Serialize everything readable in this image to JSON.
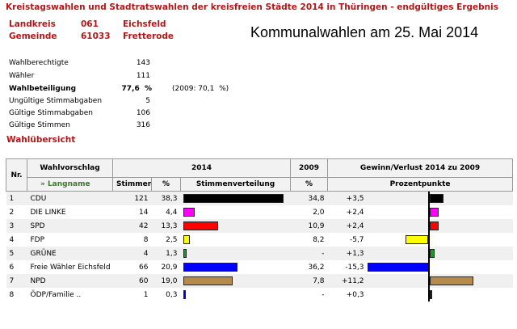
{
  "header": {
    "title": "Kreistagswahlen und Stadtratswahlen der kreisfreien Städte 2014 in Thüringen - endgültiges Ergebnis",
    "landkreis_label": "Landkreis",
    "landkreis_code": "061",
    "landkreis_name": "Eichsfeld",
    "gemeinde_label": "Gemeinde",
    "gemeinde_code": "61033",
    "gemeinde_name": "Fretterode",
    "overlay_text": "Kommunalwahlen am 25. Mai 2014"
  },
  "stats": [
    {
      "label": "Wahlberechtigte",
      "value": "143",
      "bold": false
    },
    {
      "label": "Wähler",
      "value": "111",
      "bold": false
    },
    {
      "label": "Wahlbeteiligung",
      "value": "77,6  %",
      "note": "(2009: 70,1  %)",
      "bold": true
    },
    {
      "label": "Ungültige Stimmabgaben",
      "value": "5",
      "bold": false
    },
    {
      "label": "Gültige Stimmabgaben",
      "value": "106",
      "bold": false
    },
    {
      "label": "Gültige Stimmen",
      "value": "316",
      "bold": false
    }
  ],
  "overview_title": "Wahlübersicht",
  "table": {
    "h_nr": "Nr.",
    "h_vorschlag": "Wahlvorschlag",
    "h_langname": "» Langname",
    "h_2014": "2014",
    "h_2009": "2009",
    "h_gewinn": "Gewinn/Verlust 2014 zu 2009",
    "h_stimmen": "Stimmen",
    "h_pct": "%",
    "h_verteilung": "Stimmenverteilung",
    "h_pct2009": "%",
    "h_prozentpunkte": "Prozentpunkte",
    "rows": [
      {
        "nr": "1",
        "name": "CDU",
        "stimmen": "121",
        "pct": "38,3",
        "pct2009": "34,8",
        "diff": "+3,5",
        "color": "#000000",
        "share": 38.3,
        "change": 3.5
      },
      {
        "nr": "2",
        "name": "DIE LINKE",
        "stimmen": "14",
        "pct": "4,4",
        "pct2009": "2,0",
        "diff": "+2,4",
        "color": "#ff00ff",
        "share": 4.4,
        "change": 2.4
      },
      {
        "nr": "3",
        "name": "SPD",
        "stimmen": "42",
        "pct": "13,3",
        "pct2009": "10,9",
        "diff": "+2,4",
        "color": "#ff0000",
        "share": 13.3,
        "change": 2.4
      },
      {
        "nr": "4",
        "name": "FDP",
        "stimmen": "8",
        "pct": "2,5",
        "pct2009": "8,2",
        "diff": "-5,7",
        "color": "#ffff00",
        "share": 2.5,
        "change": -5.7
      },
      {
        "nr": "5",
        "name": "GRÜNE",
        "stimmen": "4",
        "pct": "1,3",
        "pct2009": "-",
        "diff": "+1,3",
        "color": "#1e9a2a",
        "share": 1.3,
        "change": 1.3
      },
      {
        "nr": "6",
        "name": "Freie Wähler Eichsfeld",
        "stimmen": "66",
        "pct": "20,9",
        "pct2009": "36,2",
        "diff": "-15,3",
        "color": "#0000ff",
        "share": 20.9,
        "change": -15.3
      },
      {
        "nr": "7",
        "name": "NPD",
        "stimmen": "60",
        "pct": "19,0",
        "pct2009": "7,8",
        "diff": "+11,2",
        "color": "#b58a4a",
        "share": 19.0,
        "change": 11.2
      },
      {
        "nr": "8",
        "name": "ÖDP/Familie ..",
        "stimmen": "1",
        "pct": "0,3",
        "pct2009": "-",
        "diff": "+0,3",
        "color": "#0000cc",
        "share": 0.3,
        "change": 0.3
      }
    ]
  }
}
